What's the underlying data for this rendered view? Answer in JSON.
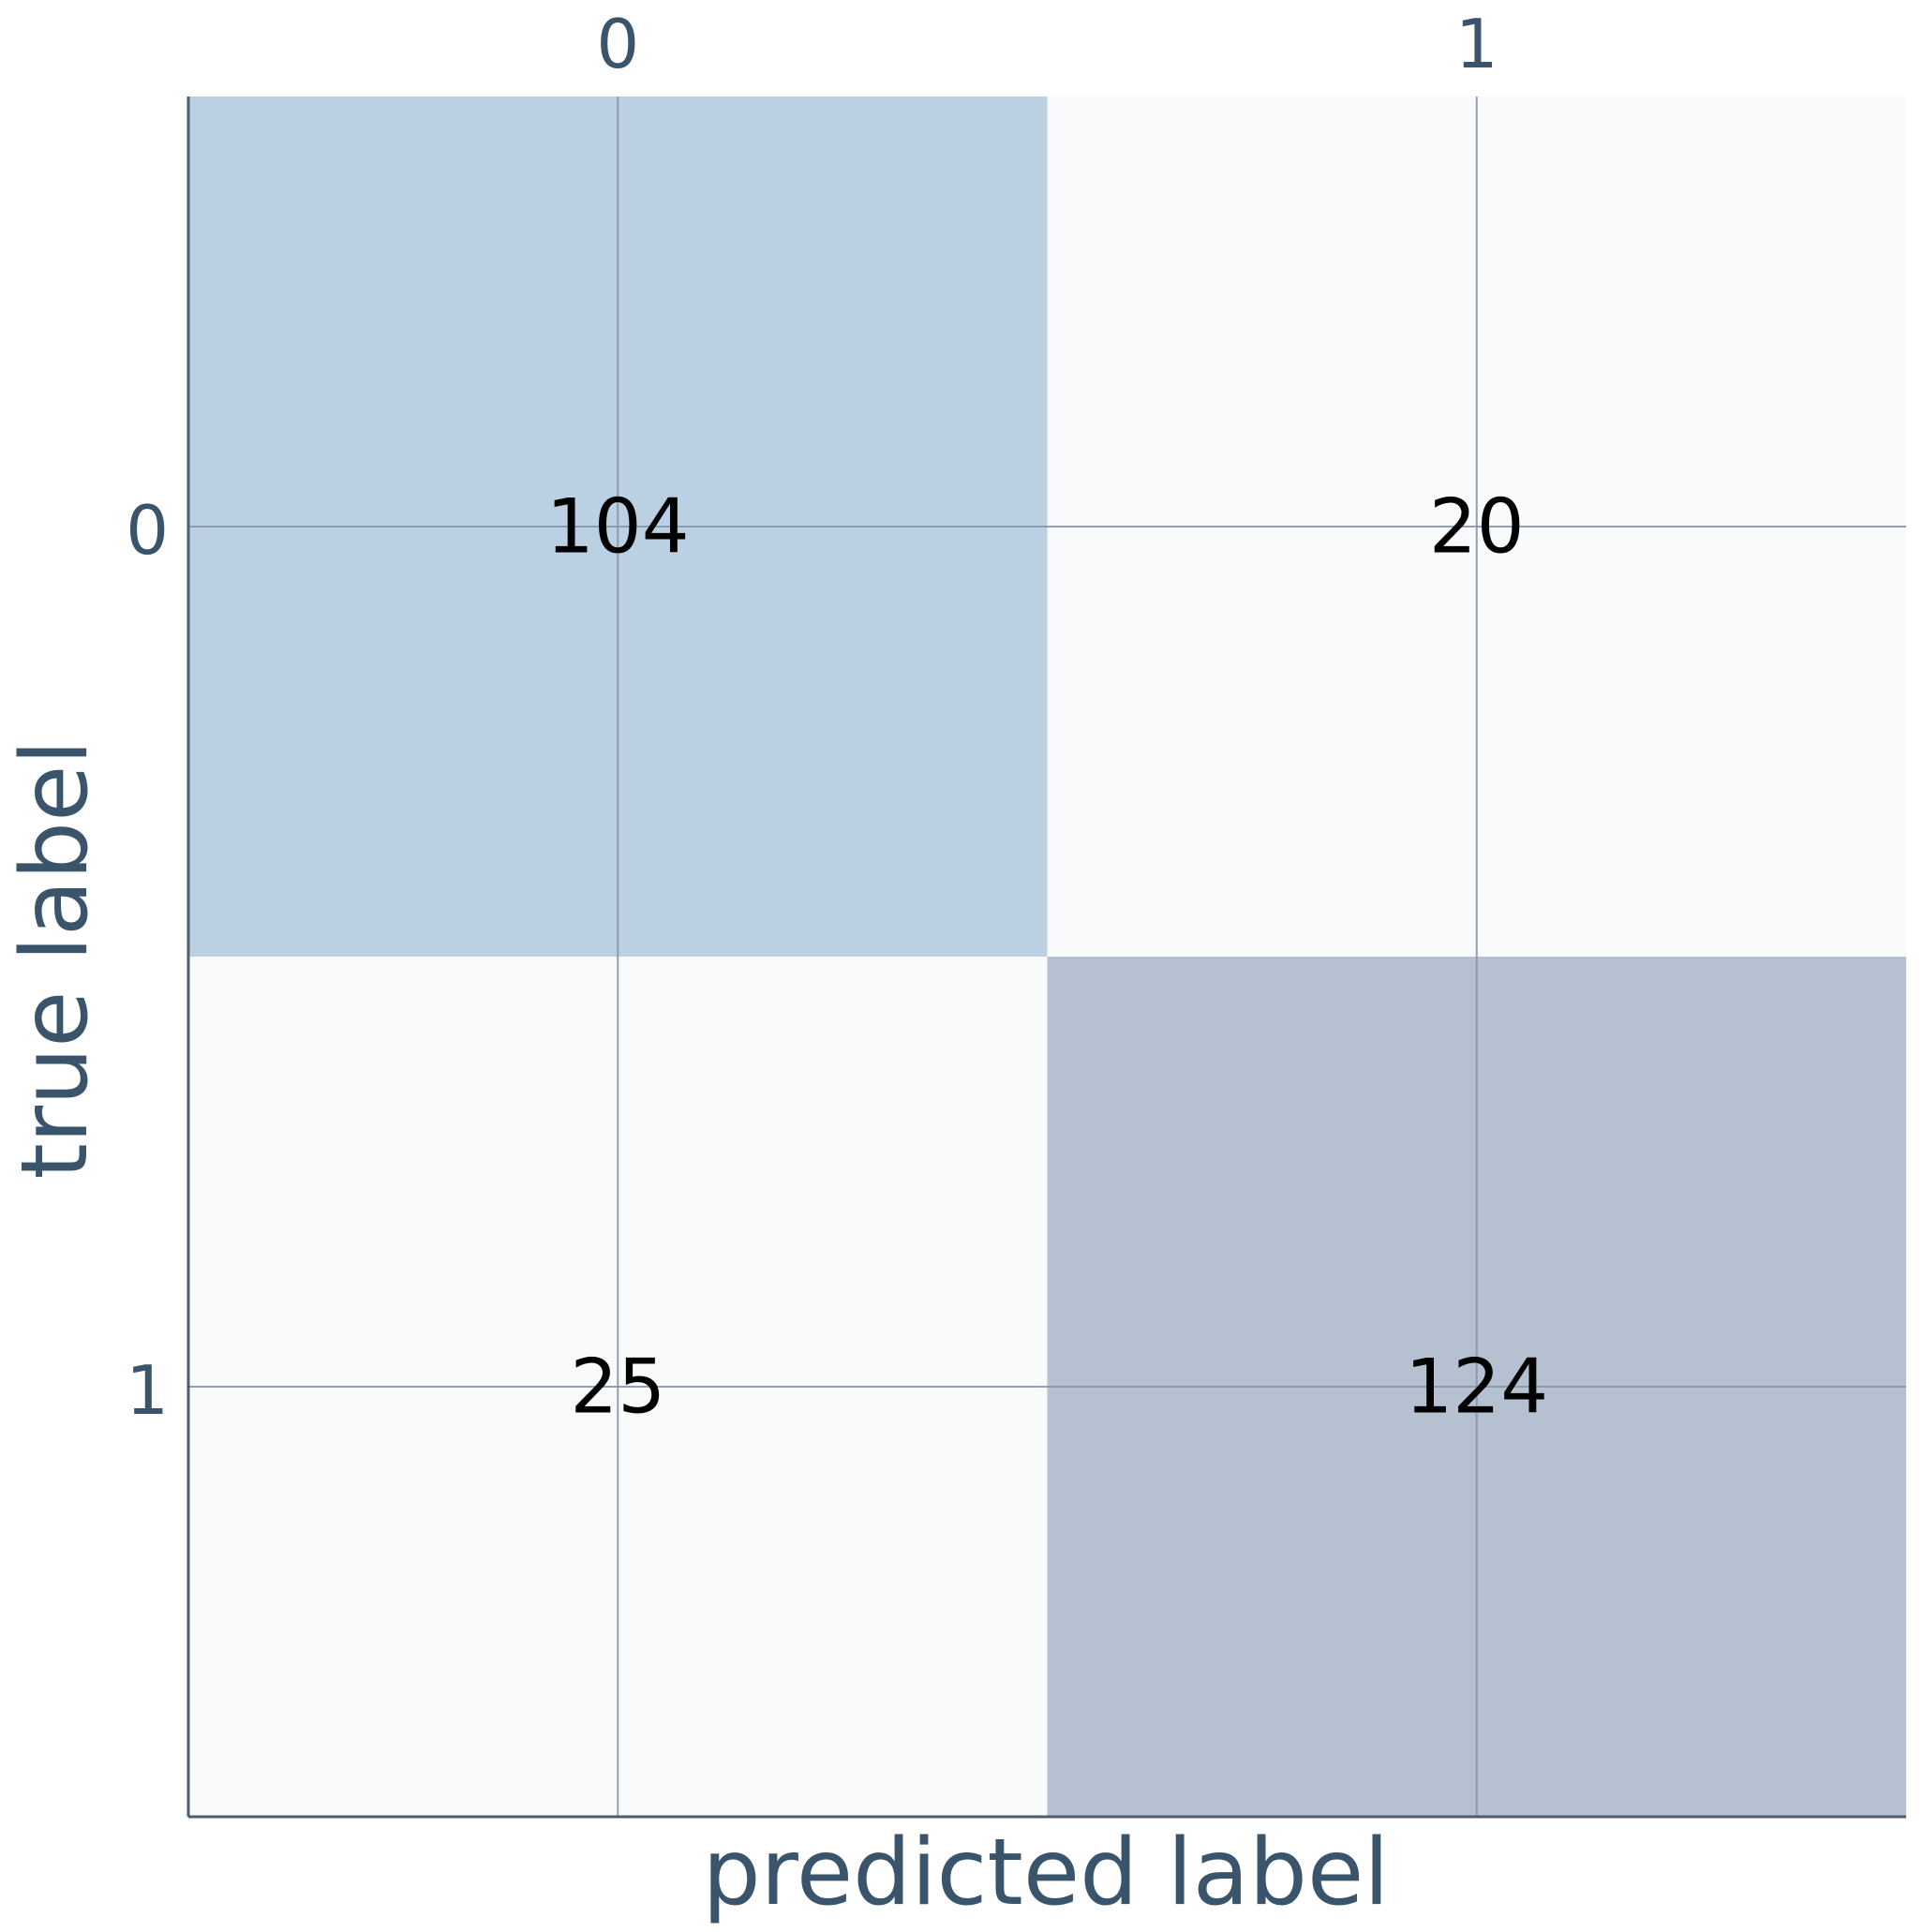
{
  "chart_data": {
    "type": "heatmap",
    "title": "",
    "xlabel": "predicted label",
    "ylabel": "true label",
    "x_tick_labels": [
      "0",
      "1"
    ],
    "y_tick_labels": [
      "0",
      "1"
    ],
    "x_tick_position": "top",
    "grid": true,
    "matrix": [
      [
        104,
        20
      ],
      [
        25,
        124
      ]
    ],
    "cell_labels": [
      [
        "104",
        "20"
      ],
      [
        "25",
        "124"
      ]
    ],
    "colors": {
      "high_value_0": "#bbd0e3",
      "high_value_1": "#b5c0d0",
      "low_value": "#f8fafc",
      "text": "#000000",
      "axis_text": "#2e4963",
      "grid": "#8896aa",
      "spine": "#4b5d70"
    }
  }
}
